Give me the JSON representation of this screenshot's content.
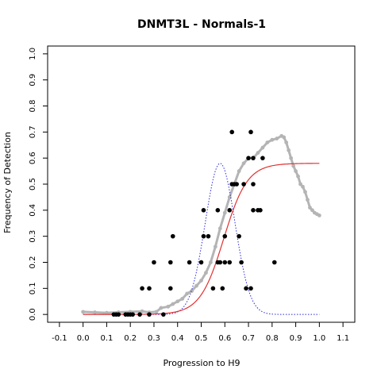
{
  "chart_data": {
    "type": "scatter",
    "title": "DNMT3L - Normals-1",
    "xlabel": "Progression to H9",
    "ylabel": "Frequency of Detection",
    "xlim": [
      -0.15,
      1.15
    ],
    "ylim": [
      -0.03,
      1.03
    ],
    "xticks": [
      -0.1,
      0.0,
      0.1,
      0.2,
      0.3,
      0.4,
      0.5,
      0.6,
      0.7,
      0.8,
      0.9,
      1.0,
      1.1
    ],
    "xtick_labels": [
      "-0.1",
      "0.0",
      "0.1",
      "0.2",
      "0.3",
      "0.4",
      "0.5",
      "0.6",
      "0.7",
      "0.8",
      "0.9",
      "1.0",
      "1.1"
    ],
    "yticks": [
      0.0,
      0.1,
      0.2,
      0.3,
      0.4,
      0.5,
      0.6,
      0.7,
      0.8,
      0.9,
      1.0
    ],
    "ytick_labels": [
      "0.0",
      "0.1",
      "0.2",
      "0.3",
      "0.4",
      "0.5",
      "0.6",
      "0.7",
      "0.8",
      "0.9",
      "1.0"
    ],
    "grid": false,
    "series": [
      {
        "kind": "points",
        "color": "#000000",
        "points": [
          [
            0.13,
            0.0
          ],
          [
            0.14,
            0.0
          ],
          [
            0.15,
            0.0
          ],
          [
            0.18,
            0.0
          ],
          [
            0.19,
            0.0
          ],
          [
            0.2,
            0.0
          ],
          [
            0.21,
            0.0
          ],
          [
            0.24,
            0.0
          ],
          [
            0.28,
            0.0
          ],
          [
            0.34,
            0.0
          ],
          [
            0.25,
            0.1
          ],
          [
            0.28,
            0.1
          ],
          [
            0.3,
            0.2
          ],
          [
            0.37,
            0.1
          ],
          [
            0.37,
            0.2
          ],
          [
            0.38,
            0.3
          ],
          [
            0.45,
            0.2
          ],
          [
            0.5,
            0.2
          ],
          [
            0.51,
            0.3
          ],
          [
            0.51,
            0.4
          ],
          [
            0.53,
            0.3
          ],
          [
            0.55,
            0.1
          ],
          [
            0.57,
            0.2
          ],
          [
            0.57,
            0.4
          ],
          [
            0.58,
            0.2
          ],
          [
            0.59,
            0.1
          ],
          [
            0.6,
            0.2
          ],
          [
            0.6,
            0.3
          ],
          [
            0.62,
            0.2
          ],
          [
            0.62,
            0.4
          ],
          [
            0.63,
            0.5
          ],
          [
            0.63,
            0.7
          ],
          [
            0.64,
            0.5
          ],
          [
            0.65,
            0.5
          ],
          [
            0.66,
            0.3
          ],
          [
            0.67,
            0.2
          ],
          [
            0.68,
            0.5
          ],
          [
            0.69,
            0.1
          ],
          [
            0.7,
            0.6
          ],
          [
            0.71,
            0.1
          ],
          [
            0.71,
            0.7
          ],
          [
            0.72,
            0.4
          ],
          [
            0.72,
            0.5
          ],
          [
            0.72,
            0.6
          ],
          [
            0.74,
            0.4
          ],
          [
            0.75,
            0.4
          ],
          [
            0.76,
            0.6
          ],
          [
            0.81,
            0.2
          ]
        ]
      },
      {
        "kind": "line",
        "color": "#b4b4b4",
        "points": [
          [
            0.0,
            0.01
          ],
          [
            0.05,
            0.008
          ],
          [
            0.1,
            0.006
          ],
          [
            0.15,
            0.008
          ],
          [
            0.2,
            0.01
          ],
          [
            0.25,
            0.012
          ],
          [
            0.28,
            0.008
          ],
          [
            0.31,
            0.01
          ],
          [
            0.33,
            0.025
          ],
          [
            0.36,
            0.03
          ],
          [
            0.38,
            0.04
          ],
          [
            0.4,
            0.05
          ],
          [
            0.42,
            0.06
          ],
          [
            0.44,
            0.08
          ],
          [
            0.46,
            0.09
          ],
          [
            0.48,
            0.11
          ],
          [
            0.5,
            0.13
          ],
          [
            0.52,
            0.16
          ],
          [
            0.54,
            0.2
          ],
          [
            0.56,
            0.26
          ],
          [
            0.58,
            0.33
          ],
          [
            0.6,
            0.39
          ],
          [
            0.62,
            0.45
          ],
          [
            0.64,
            0.5
          ],
          [
            0.66,
            0.55
          ],
          [
            0.68,
            0.58
          ],
          [
            0.7,
            0.6
          ],
          [
            0.72,
            0.6
          ],
          [
            0.74,
            0.62
          ],
          [
            0.76,
            0.64
          ],
          [
            0.78,
            0.66
          ],
          [
            0.8,
            0.67
          ],
          [
            0.82,
            0.675
          ],
          [
            0.84,
            0.685
          ],
          [
            0.85,
            0.68
          ],
          [
            0.86,
            0.66
          ],
          [
            0.87,
            0.63
          ],
          [
            0.88,
            0.6
          ],
          [
            0.89,
            0.57
          ],
          [
            0.9,
            0.55
          ],
          [
            0.91,
            0.53
          ],
          [
            0.92,
            0.5
          ],
          [
            0.93,
            0.49
          ],
          [
            0.94,
            0.47
          ],
          [
            0.95,
            0.44
          ],
          [
            0.96,
            0.41
          ],
          [
            0.97,
            0.4
          ],
          [
            0.98,
            0.39
          ],
          [
            0.99,
            0.385
          ],
          [
            1.0,
            0.38
          ]
        ]
      },
      {
        "kind": "logistic",
        "color": "#e23030",
        "upper": 0.58,
        "midpoint": 0.595,
        "slope": 20
      },
      {
        "kind": "gaussian",
        "color": "#2a2ad8",
        "mean": 0.58,
        "sd": 0.063,
        "peak": 0.58
      }
    ]
  }
}
